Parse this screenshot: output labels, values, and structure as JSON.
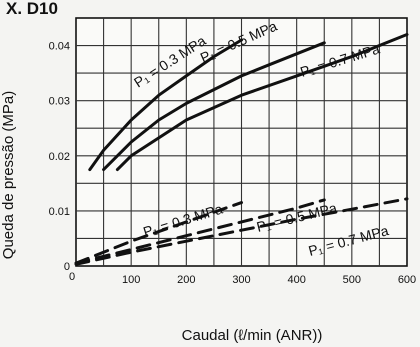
{
  "header": {
    "title": "X. D10"
  },
  "chart_data": {
    "type": "line",
    "title": "",
    "xlabel": "Caudal (ℓ/min (ANR))",
    "ylabel": "Queda de pressão (MPa)",
    "xlim": [
      0,
      600
    ],
    "ylim": [
      0,
      0.045
    ],
    "x_ticks": [
      0,
      100,
      200,
      300,
      400,
      500,
      600
    ],
    "y_ticks": [
      0,
      0.01,
      0.02,
      0.03,
      0.04
    ],
    "x_tick_labels": [
      "0",
      "100",
      "200",
      "300",
      "400",
      "500",
      "600"
    ],
    "y_tick_labels": [
      "0",
      "0.01",
      "0.02",
      "0.03",
      "0.04"
    ],
    "origin_label": "0",
    "grid": true,
    "series": [
      {
        "name": "P₁ = 0.3 MPa",
        "style": "solid",
        "x": [
          25,
          50,
          100,
          150,
          200,
          250,
          300
        ],
        "y": [
          0.0175,
          0.021,
          0.0265,
          0.031,
          0.0345,
          0.038,
          0.041
        ]
      },
      {
        "name": "P₁ = 0.5 MPa",
        "style": "solid",
        "x": [
          50,
          100,
          150,
          200,
          250,
          300,
          350,
          400,
          450
        ],
        "y": [
          0.0175,
          0.0225,
          0.0265,
          0.0295,
          0.032,
          0.0345,
          0.0365,
          0.0385,
          0.0405
        ]
      },
      {
        "name": "P₁ = 0.7 MPa",
        "style": "solid",
        "x": [
          75,
          100,
          200,
          300,
          400,
          500,
          600
        ],
        "y": [
          0.0175,
          0.02,
          0.0265,
          0.031,
          0.0345,
          0.038,
          0.042
        ]
      },
      {
        "name": "P₁ = 0.3 MPa",
        "style": "dashed",
        "x": [
          0,
          100,
          200,
          300
        ],
        "y": [
          0.0005,
          0.0045,
          0.008,
          0.0115
        ]
      },
      {
        "name": "P₁ = 0.5 MPa",
        "style": "dashed",
        "x": [
          0,
          100,
          200,
          300,
          400,
          450
        ],
        "y": [
          0.0005,
          0.003,
          0.0055,
          0.008,
          0.0105,
          0.012
        ]
      },
      {
        "name": "P₁ = 0.7 MPa",
        "style": "dashed",
        "x": [
          0,
          100,
          200,
          300,
          400,
          500,
          600
        ],
        "y": [
          0.0003,
          0.0025,
          0.0045,
          0.0065,
          0.0085,
          0.0103,
          0.0122
        ]
      }
    ]
  }
}
